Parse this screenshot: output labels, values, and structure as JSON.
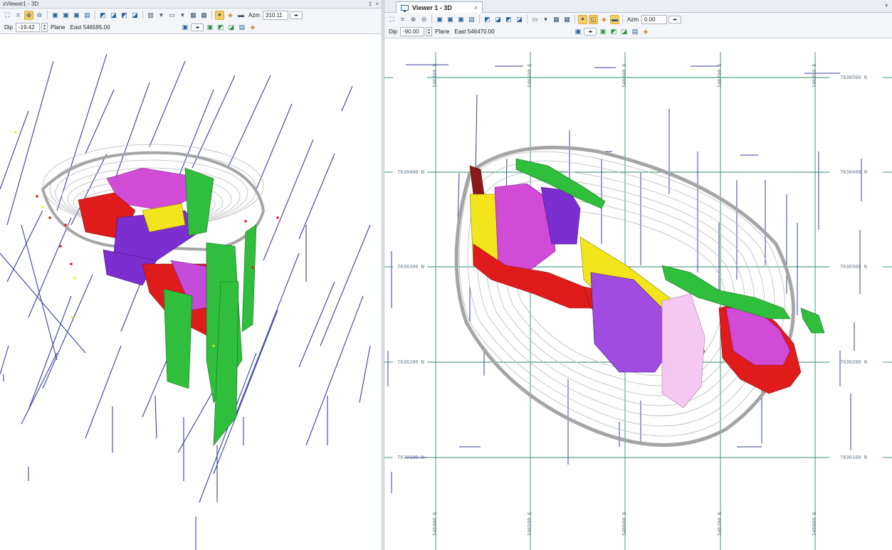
{
  "left_viewer": {
    "title": "xViewer1 - 3D",
    "title_controls": [
      "‡",
      "×"
    ],
    "azm_label": "Azm",
    "azm_value": "310.11",
    "dip_label": "Dip",
    "dip_value": "-19.42",
    "plane_label": "Plane",
    "plane_value": "East 546595.00"
  },
  "right_viewer": {
    "tab_label": "Viewer 1 - 3D",
    "tab_close": "×",
    "tab_dropdown": "▾",
    "azm_label": "Azm",
    "azm_value": "0.00",
    "dip_label": "Dip",
    "dip_value": "-90.00",
    "plane_label": "Plane",
    "plane_value": "East 546470.00",
    "grid_labels": {
      "northing": [
        {
          "left": "7630400 N",
          "right": "7630400 N"
        },
        {
          "left": "7630300 N",
          "right": "7630300 N"
        },
        {
          "left": "7630200 N",
          "right": "7630200 N"
        },
        {
          "left": "7630100 N",
          "right": "7630100 N"
        }
      ],
      "northing_top": "7630500 N",
      "easting_top": [
        "546400 E",
        "546500 E",
        "546600 E",
        "546700 E",
        "546800 E"
      ],
      "easting_bottom": [
        "546400 E",
        "546500 E",
        "546600 E",
        "546700 E",
        "546800 E"
      ]
    }
  },
  "icons": {
    "zoom_extents": "zoom-extents-icon",
    "zoom_in": "zoom-in-icon",
    "zoom_out": "zoom-out-icon",
    "view_cube": "view-cube-icon",
    "monitor": "monitor-icon",
    "highlight": "highlight-tool-icon"
  },
  "colors": {
    "accent_highlight": "#f6cf62",
    "toolbar_bg": "#f3f5f8",
    "grid_line": "#2e8b6e",
    "drillhole": "#3a3f9a",
    "solid_magenta": "#d14bd6",
    "solid_purple": "#7b2fd0",
    "solid_red": "#e01b1b",
    "solid_yellow": "#f2e51c",
    "solid_green": "#2fbf3c",
    "pit_shell": "#b8b8b8"
  }
}
